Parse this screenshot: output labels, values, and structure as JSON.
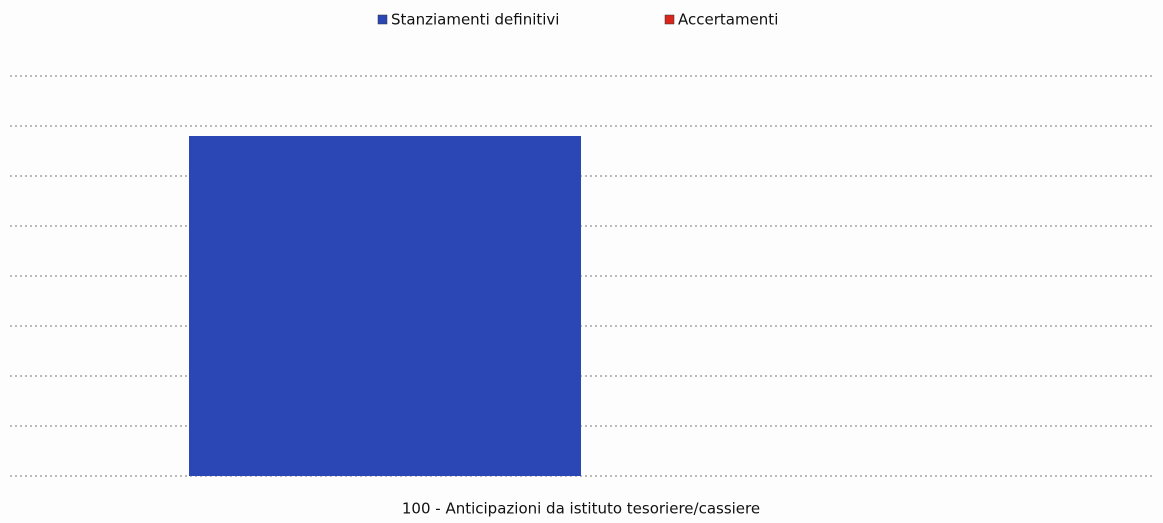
{
  "chart_data": {
    "type": "bar",
    "categories": [
      "100 - Anticipazioni da istituto tesoriere/cassiere"
    ],
    "series": [
      {
        "name": "Stanziamenti definitivi",
        "color": "#2b47b5",
        "values": [
          6.8
        ]
      },
      {
        "name": "Accertamenti",
        "color": "#d9261c",
        "values": [
          0
        ]
      }
    ],
    "ylim": [
      0,
      8
    ],
    "yticks": [
      0,
      1,
      2,
      3,
      4,
      5,
      6,
      7,
      8
    ],
    "grid": true,
    "legend": "top"
  }
}
